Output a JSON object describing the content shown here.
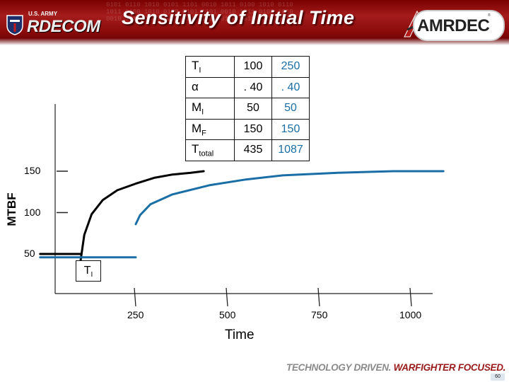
{
  "header": {
    "title": "Sensitivity of Initial Time",
    "left_logo": {
      "line1": "U.S. ARMY",
      "wordmark": "RDECOM"
    },
    "right_logo": {
      "wordmark": "AMRDEC"
    }
  },
  "params_table": {
    "rows": [
      {
        "name": "T",
        "sub": "I",
        "v1": "100",
        "v2": "250"
      },
      {
        "name": "α",
        "sub": "",
        "v1": ". 40",
        "v2": ". 40"
      },
      {
        "name": "M",
        "sub": "I",
        "v1": "50",
        "v2": "50"
      },
      {
        "name": "M",
        "sub": "F",
        "v1": "150",
        "v2": "150"
      },
      {
        "name": "T",
        "sub": "total",
        "v1": "435",
        "v2": "1087"
      }
    ]
  },
  "chart_data": {
    "type": "line",
    "ylabel": "MTBF",
    "xlabel": "Time",
    "yticks": [
      "150",
      "100",
      "50"
    ],
    "xticks": [
      "250",
      "500",
      "750",
      "1000"
    ],
    "ylim": [
      35,
      175
    ],
    "xlim": [
      -50,
      1100
    ],
    "series": [
      {
        "color": "#000000",
        "points": [
          [
            -10,
            50
          ],
          [
            100,
            50
          ]
        ]
      },
      {
        "color": "#000000",
        "points": [
          [
            100,
            42
          ],
          [
            110,
            73
          ],
          [
            130,
            98
          ],
          [
            160,
            115
          ],
          [
            200,
            127
          ],
          [
            250,
            135
          ],
          [
            300,
            142
          ],
          [
            350,
            146
          ],
          [
            400,
            148
          ],
          [
            435,
            150
          ]
        ]
      },
      {
        "color": "#1a6ea6",
        "points": [
          [
            -10,
            46
          ],
          [
            250,
            46
          ]
        ]
      },
      {
        "color": "#1a6ea6",
        "points": [
          [
            250,
            86
          ],
          [
            262,
            97
          ],
          [
            290,
            110
          ],
          [
            350,
            122
          ],
          [
            450,
            133
          ],
          [
            550,
            140
          ],
          [
            650,
            145
          ],
          [
            800,
            148
          ],
          [
            950,
            150
          ],
          [
            1087,
            150
          ]
        ]
      }
    ],
    "annotation": {
      "label": "T",
      "sub": "I"
    }
  },
  "footer": {
    "tagline_part1": "TECHNOLOGY DRIVEN.",
    "tagline_part2": "WARFIGHTER FOCUSED.",
    "page_number": "60"
  }
}
